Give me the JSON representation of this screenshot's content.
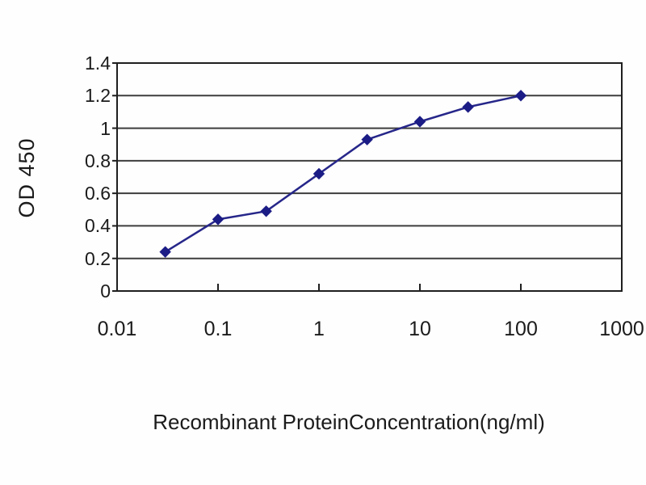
{
  "chart_data": {
    "type": "line",
    "title": "",
    "xlabel": "Recombinant ProteinConcentration(ng/ml)",
    "ylabel": "OD 450",
    "x_scale": "log",
    "xlim": [
      0.01,
      1000
    ],
    "ylim": [
      0,
      1.4
    ],
    "x_ticks": {
      "values": [
        0.01,
        0.1,
        1,
        10,
        100,
        1000
      ],
      "labels": [
        "0.01",
        "0.1",
        "1",
        "10",
        "100",
        "1000"
      ]
    },
    "y_ticks": {
      "values": [
        0,
        0.2,
        0.4,
        0.6,
        0.8,
        1,
        1.2,
        1.4
      ],
      "labels": [
        "0",
        "0.2",
        "0.4",
        "0.6",
        "0.8",
        "1",
        "1.2",
        "1.4"
      ]
    },
    "grid": "horizontal",
    "legend": "none",
    "series": [
      {
        "name": "OD 450",
        "marker": "diamond",
        "x": [
          0.03,
          0.1,
          0.3,
          1,
          3,
          10,
          30,
          100
        ],
        "y": [
          0.24,
          0.44,
          0.49,
          0.72,
          0.93,
          1.04,
          1.13,
          1.2
        ]
      }
    ]
  },
  "colors": {
    "series_line": "#26268a",
    "marker_fill": "#1c1c86",
    "gridline": "#3d3d3d",
    "axis_border": "#1f1f1f",
    "text": "#1b1b1b",
    "background": "#fefefe"
  }
}
